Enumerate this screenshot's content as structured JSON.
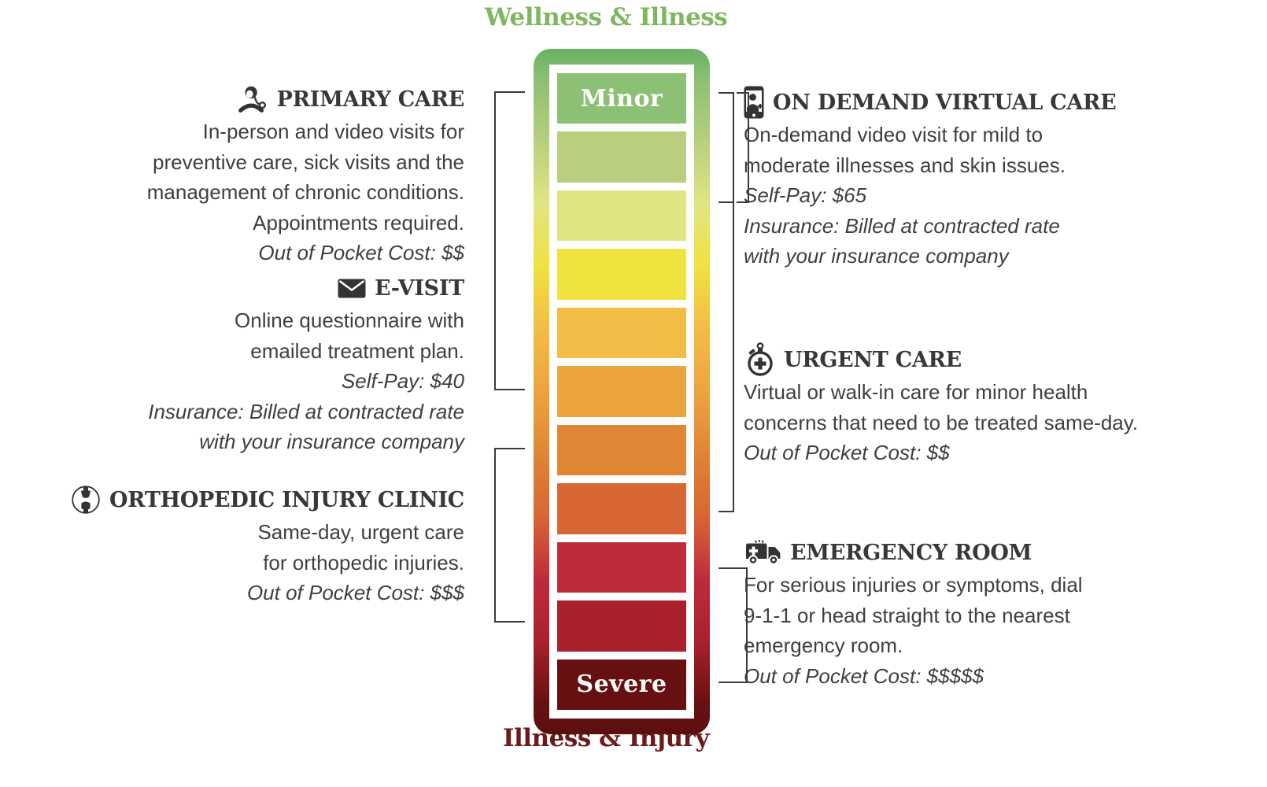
{
  "titles": {
    "top": "Wellness & Illness",
    "top_color": "#7db75f",
    "bottom": "Illness & Injury",
    "bottom_color": "#6d1a1a"
  },
  "bar": {
    "border_top_color": "#69b164",
    "border_bottom_color": "#5c0f10",
    "segments": [
      {
        "label": "Minor",
        "color": "#8cc074"
      },
      {
        "color": "#b9cf7d"
      },
      {
        "color": "#e0e583"
      },
      {
        "color": "#f0e23f"
      },
      {
        "color": "#f3bc45"
      },
      {
        "color": "#eca43f"
      },
      {
        "color": "#e08534"
      },
      {
        "color": "#d86634"
      },
      {
        "color": "#bf2b3c"
      },
      {
        "color": "#aa212b"
      },
      {
        "label": "Severe",
        "color": "#671012"
      }
    ]
  },
  "left_sections": [
    {
      "id": "primary-care",
      "icon": "doctor-stethoscope-icon",
      "title": "PRIMARY CARE",
      "body": [
        "In-person and video visits for",
        "preventive care, sick visits and the",
        "management of chronic conditions.",
        "Appointments required."
      ],
      "notes": [
        "Out of Pocket Cost: $$"
      ]
    },
    {
      "id": "e-visit",
      "icon": "envelope-icon",
      "title": "E-VISIT",
      "body": [
        "Online questionnaire with",
        "emailed treatment plan."
      ],
      "notes": [
        "Self-Pay: $40",
        "Insurance: Billed at contracted rate",
        "with your insurance company"
      ]
    },
    {
      "id": "orthopedic-injury-clinic",
      "icon": "bone-joint-icon",
      "title": "ORTHOPEDIC INJURY CLINIC",
      "body": [
        "Same-day, urgent care",
        "for orthopedic injuries."
      ],
      "notes": [
        "Out of Pocket Cost: $$$"
      ]
    }
  ],
  "right_sections": [
    {
      "id": "on-demand-virtual-care",
      "icon": "phone-video-visit-icon",
      "title": "ON DEMAND VIRTUAL CARE",
      "body": [
        "On-demand video visit for mild to",
        "moderate illnesses and skin issues."
      ],
      "notes": [
        "Self-Pay: $65",
        "Insurance: Billed at contracted rate",
        "with your insurance company"
      ]
    },
    {
      "id": "urgent-care",
      "icon": "stopwatch-cross-icon",
      "title": "URGENT CARE",
      "body": [
        "Virtual or walk-in care for minor health",
        "concerns that need to be treated same-day."
      ],
      "notes": [
        "Out of Pocket Cost: $$"
      ]
    },
    {
      "id": "emergency-room",
      "icon": "ambulance-icon",
      "title": "EMERGENCY ROOM",
      "body": [
        "For serious injuries or symptoms, dial",
        "9-1-1 or head straight to the nearest",
        "emergency room."
      ],
      "notes": [
        "Out of Pocket Cost: $$$$$"
      ]
    }
  ]
}
